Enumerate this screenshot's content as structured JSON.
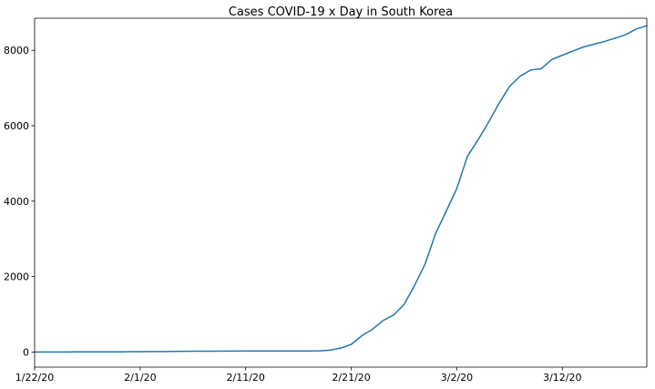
{
  "chart_data": {
    "type": "line",
    "title": "Cases COVID-19 x Day in South Korea",
    "xlabel": "",
    "ylabel": "",
    "grid": false,
    "legend": "none",
    "colors": {
      "series": "#1f77b4",
      "axis": "#000000",
      "background": "#ffffff"
    },
    "xlim": [
      "1/22/20",
      "3/20/20"
    ],
    "ylim": [
      -400,
      8850
    ],
    "x_ticks": [
      "1/22/20",
      "2/1/20",
      "2/11/20",
      "2/21/20",
      "3/2/20",
      "3/12/20"
    ],
    "y_ticks": [
      0,
      2000,
      4000,
      6000,
      8000
    ],
    "x": [
      "1/22/20",
      "1/23/20",
      "1/24/20",
      "1/25/20",
      "1/26/20",
      "1/27/20",
      "1/28/20",
      "1/29/20",
      "1/30/20",
      "1/31/20",
      "2/1/20",
      "2/2/20",
      "2/3/20",
      "2/4/20",
      "2/5/20",
      "2/6/20",
      "2/7/20",
      "2/8/20",
      "2/9/20",
      "2/10/20",
      "2/11/20",
      "2/12/20",
      "2/13/20",
      "2/14/20",
      "2/15/20",
      "2/16/20",
      "2/17/20",
      "2/18/20",
      "2/19/20",
      "2/20/20",
      "2/21/20",
      "2/22/20",
      "2/23/20",
      "2/24/20",
      "2/25/20",
      "2/26/20",
      "2/27/20",
      "2/28/20",
      "2/29/20",
      "3/1/20",
      "3/2/20",
      "3/3/20",
      "3/4/20",
      "3/5/20",
      "3/6/20",
      "3/7/20",
      "3/8/20",
      "3/9/20",
      "3/10/20",
      "3/11/20",
      "3/12/20",
      "3/13/20",
      "3/14/20",
      "3/15/20",
      "3/16/20",
      "3/17/20",
      "3/18/20",
      "3/19/20",
      "3/20/20"
    ],
    "series": [
      {
        "values": [
          1,
          1,
          2,
          2,
          3,
          4,
          4,
          4,
          4,
          11,
          12,
          15,
          15,
          16,
          19,
          23,
          24,
          24,
          25,
          27,
          28,
          28,
          28,
          28,
          28,
          29,
          30,
          31,
          51,
          104,
          204,
          433,
          602,
          833,
          977,
          1261,
          1766,
          2337,
          3150,
          3736,
          4335,
          5186,
          5621,
          6088,
          6593,
          7041,
          7314,
          7478,
          7513,
          7755,
          7869,
          7979,
          8086,
          8162,
          8236,
          8320,
          8413,
          8565,
          8652
        ]
      }
    ]
  }
}
